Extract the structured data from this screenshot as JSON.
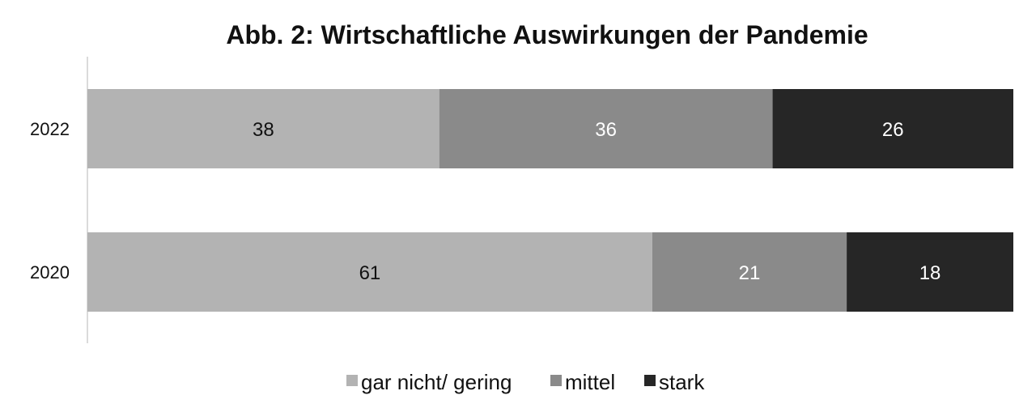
{
  "chart_data": {
    "type": "bar",
    "orientation": "horizontal",
    "stacked": true,
    "title": "Abb. 2: Wirtschaftliche Auswirkungen der Pandemie",
    "xlabel": "",
    "ylabel": "",
    "xlim": [
      0,
      100
    ],
    "grid": false,
    "legend_position": "bottom",
    "categories": [
      "2022",
      "2020"
    ],
    "series": [
      {
        "name": "gar nicht/ gering",
        "values": [
          38,
          61
        ],
        "color": "#b3b3b3",
        "label_color": "#111111"
      },
      {
        "name": "mittel",
        "values": [
          36,
          21
        ],
        "color": "#8a8a8a",
        "label_color": "#ffffff"
      },
      {
        "name": "stark",
        "values": [
          26,
          18
        ],
        "color": "#262626",
        "label_color": "#ffffff"
      }
    ]
  }
}
